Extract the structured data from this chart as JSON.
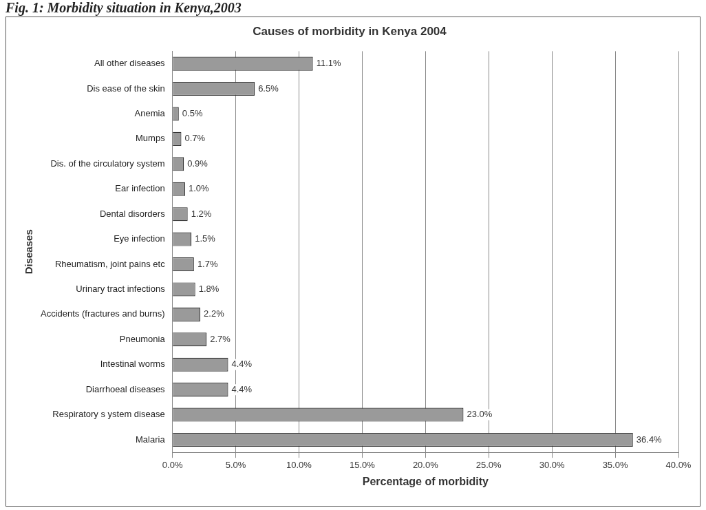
{
  "chart_data": {
    "type": "bar",
    "orientation": "horizontal",
    "title": "Causes of morbidity in Kenya 2004",
    "xlabel": "Percentage of morbidity",
    "ylabel": "Diseases",
    "annotations": [
      "Fig. 1: Morbidity situation in Kenya,2003"
    ],
    "categories": [
      "All other diseases",
      "Dis ease of the skin",
      "Anemia",
      "Mumps",
      "Dis. of the circulatory system",
      "Ear infection",
      "Dental disorders",
      "Eye infection",
      "Rheumatism, joint pains etc",
      "Urinary tract infections",
      "Accidents (fractures and burns)",
      "Pneumonia",
      "Intestinal worms",
      "Diarrhoeal diseases",
      "Respiratory s ystem disease",
      "Malaria"
    ],
    "values": [
      11.1,
      6.5,
      0.5,
      0.7,
      0.9,
      1.0,
      1.2,
      1.5,
      1.7,
      1.8,
      2.2,
      2.7,
      4.4,
      4.4,
      23.0,
      36.4
    ],
    "value_labels": [
      "11.1%",
      "6.5%",
      "0.5%",
      "0.7%",
      "0.9%",
      "1.0%",
      "1.2%",
      "1.5%",
      "1.7%",
      "1.8%",
      "2.2%",
      "2.7%",
      "4.4%",
      "4.4%",
      "23.0%",
      "36.4%"
    ],
    "color": "#9a9a9a",
    "xlim": [
      0,
      40
    ],
    "xticks": [
      {
        "value": 0,
        "label": "0.0%"
      },
      {
        "value": 5,
        "label": "5.0%"
      },
      {
        "value": 10,
        "label": "10.0%"
      },
      {
        "value": 15,
        "label": "15.0%"
      },
      {
        "value": 20,
        "label": "20.0%"
      },
      {
        "value": 25,
        "label": "25.0%"
      },
      {
        "value": 30,
        "label": "30.0%"
      },
      {
        "value": 35,
        "label": "35.0%"
      },
      {
        "value": 40,
        "label": "40.0%"
      }
    ],
    "grid": "x"
  }
}
